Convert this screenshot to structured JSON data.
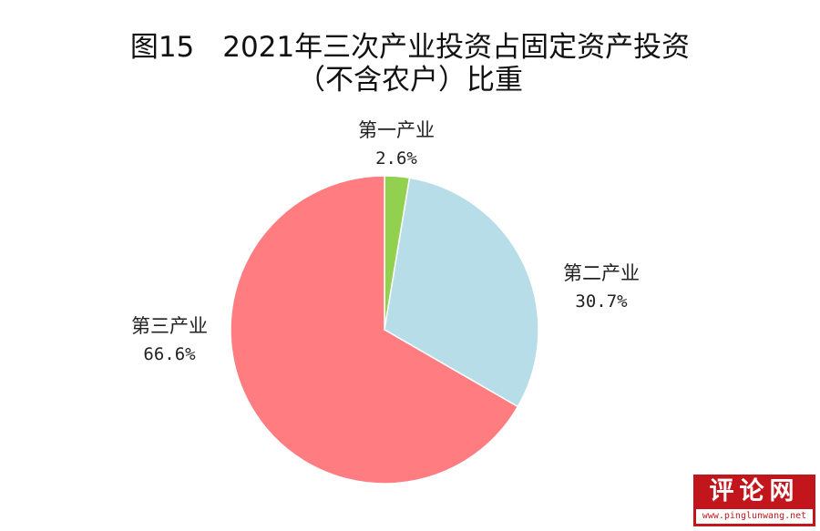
{
  "chart_data": {
    "type": "pie",
    "title": "图15　2021年三次产业投资占固定资产投资",
    "subtitle": "（不含农户）比重",
    "slices": [
      {
        "name": "第一产业",
        "value": 2.6,
        "label": "2.6%",
        "color": "#92d050"
      },
      {
        "name": "第二产业",
        "value": 30.7,
        "label": "30.7%",
        "color": "#b7dde8"
      },
      {
        "name": "第三产业",
        "value": 66.6,
        "label": "66.6%",
        "color": "#ff7c80"
      }
    ],
    "start_angle_deg": 0,
    "direction": "clockwise"
  },
  "watermark": {
    "title": "评论网",
    "url": "www.pinglunwang.net"
  }
}
